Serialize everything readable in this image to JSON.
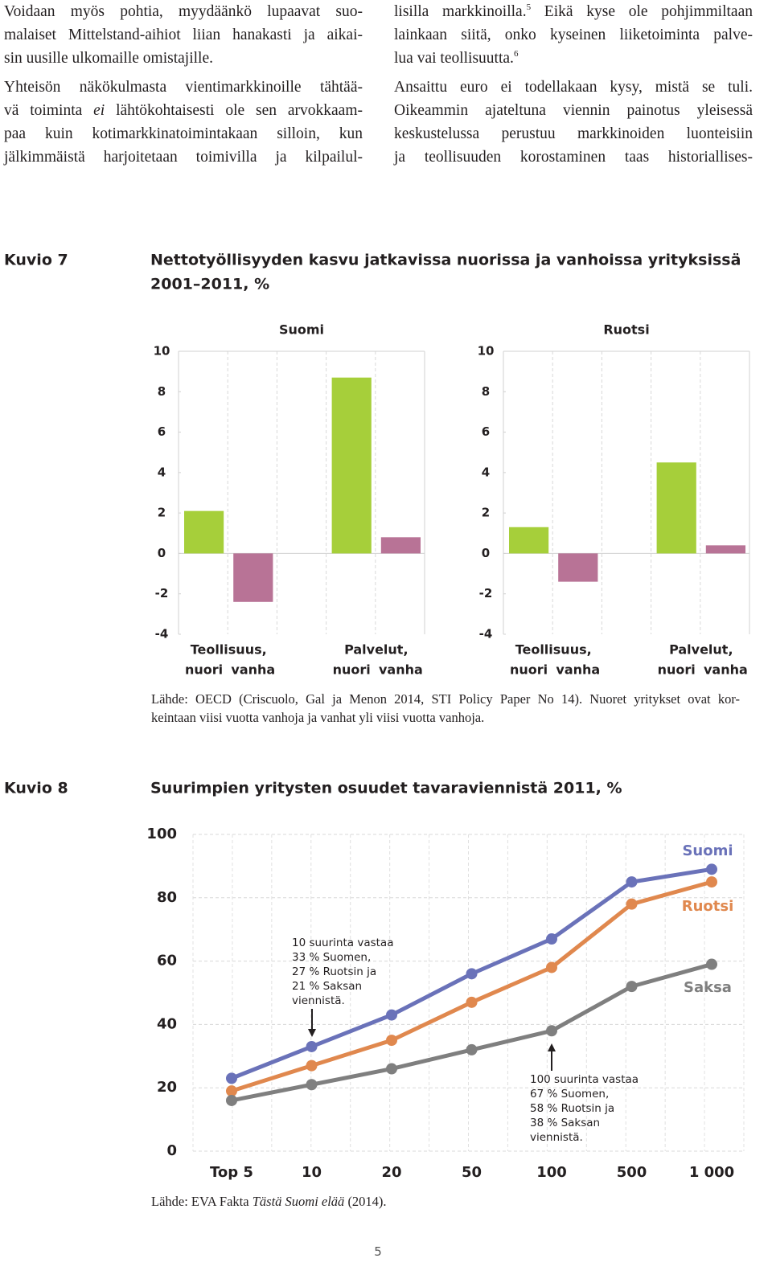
{
  "document": {
    "columns": [
      [
        [
          "Voidaan myös pohtia, myydäänkö lupaavat suo-",
          "malaiset Mittelstand-aihiot liian hanakasti ja aikai-",
          "sin uusille ulkomaille omistajille."
        ],
        [
          "Yhteisön näkökulmasta vientimarkkinoille tähtää-",
          [
            "vä toiminta ",
            "ei",
            " lähtökohtaisesti ole sen arvokkaam-"
          ],
          "paa kuin kotimarkkinatoimintakaan silloin, kun",
          "jälkimmäistä harjoitetaan toimivilla ja kilpailul-"
        ]
      ],
      [
        [
          [
            "lisilla markkinoilla.",
            "5",
            " Eikä kyse ole pohjimmiltaan"
          ],
          "lainkaan siitä, onko kyseinen liiketoiminta palve-",
          [
            "lua vai teollisuutta.",
            "6"
          ]
        ],
        [
          "Ansaittu euro ei todellakaan kysy, mistä se tuli.",
          "Oikeammin ajateltuna viennin painotus yleisessä",
          "keskustelussa perustuu markkinoiden luonteisiin",
          "ja teollisuuden korostaminen taas historiallises-"
        ]
      ]
    ],
    "figures": [
      {
        "label": "Kuvio 7",
        "title": [
          "Nettotyöllisyyden kasvu jatkavissa nuorissa ja vanhoissa yrityksissä",
          "2001–2011, %"
        ],
        "source": [
          "Lähde: OECD (Criscuolo, Gal ja Menon 2014, STI Policy Paper No 14). Nuoret yritykset ovat kor-",
          "keintaan viisi vuotta vanhoja ja vanhat yli viisi vuotta vanhoja."
        ]
      },
      {
        "label": "Kuvio 8",
        "title": [
          "Suurimpien yritysten osuudet tavaraviennistä 2011, %"
        ],
        "source": [
          "Lähde: EVA Fakta ",
          "Tästä Suomi elää",
          " (2014)."
        ]
      }
    ],
    "page_number": "5"
  },
  "chart_data": [
    {
      "type": "bar",
      "title": "Suomi",
      "groups": [
        "Teollisuus,",
        "Palvelut,"
      ],
      "categories": [
        "nuori",
        "vanha",
        "nuori",
        "vanha"
      ],
      "values": [
        2.1,
        -2.4,
        8.7,
        0.8
      ],
      "colors": [
        "#a6cf3a",
        "#b87396",
        "#a6cf3a",
        "#b87396"
      ],
      "ylim": [
        -4,
        10
      ],
      "yticks": [
        -4,
        -2,
        0,
        2,
        4,
        6,
        8,
        10
      ]
    },
    {
      "type": "bar",
      "title": "Ruotsi",
      "groups": [
        "Teollisuus,",
        "Palvelut,"
      ],
      "categories": [
        "nuori",
        "vanha",
        "nuori",
        "vanha"
      ],
      "values": [
        1.3,
        -1.4,
        4.5,
        0.4
      ],
      "colors": [
        "#a6cf3a",
        "#b87396",
        "#a6cf3a",
        "#b87396"
      ],
      "ylim": [
        -4,
        10
      ],
      "yticks": [
        -4,
        -2,
        0,
        2,
        4,
        6,
        8,
        10
      ]
    },
    {
      "type": "line",
      "categories": [
        "Top 5",
        "10",
        "20",
        "50",
        "100",
        "500",
        "1 000"
      ],
      "series": [
        {
          "name": "Suomi",
          "color": "#6a72b9",
          "values": [
            23,
            33,
            43,
            56,
            67,
            85,
            89
          ]
        },
        {
          "name": "Ruotsi",
          "color": "#e0884e",
          "values": [
            19,
            27,
            35,
            47,
            58,
            78,
            85
          ]
        },
        {
          "name": "Saksa",
          "color": "#7f7f7f",
          "values": [
            16,
            21,
            26,
            32,
            38,
            52,
            59
          ]
        }
      ],
      "ylim": [
        0,
        100
      ],
      "yticks": [
        0,
        20,
        40,
        60,
        80,
        100
      ],
      "grid": true,
      "annotations": [
        {
          "lines": [
            "10 suurinta vastaa",
            "33 % Suomen,",
            "27 % Ruotsin ja",
            "21 % Saksan",
            "viennistä."
          ]
        },
        {
          "lines": [
            "100 suurinta vastaa",
            "67 % Suomen,",
            "58 % Ruotsin ja",
            "38 % Saksan",
            "viennistä."
          ]
        }
      ]
    }
  ]
}
